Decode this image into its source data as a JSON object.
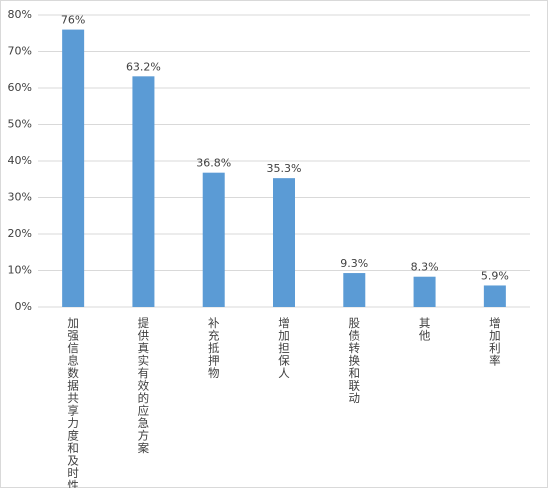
{
  "chart_data": {
    "type": "bar",
    "categories": [
      "加强信息数据共享力度和及时性",
      "提供真实有效的应急方案",
      "补充抵押物",
      "增加担保人",
      "股债转换和联动",
      "其他",
      "增加利率"
    ],
    "values": [
      76,
      63.2,
      36.8,
      35.3,
      9.3,
      8.3,
      5.9
    ],
    "value_labels": [
      "76%",
      "63.2%",
      "36.8%",
      "35.3%",
      "9.3%",
      "8.3%",
      "5.9%"
    ],
    "color": "#5b9bd5",
    "ylim": [
      0,
      80
    ],
    "yticks": [
      {
        "value": 0,
        "label": "0%"
      },
      {
        "value": 10,
        "label": "10%"
      },
      {
        "value": 20,
        "label": "20%"
      },
      {
        "value": 30,
        "label": "30%"
      },
      {
        "value": 40,
        "label": "40%"
      },
      {
        "value": 50,
        "label": "50%"
      },
      {
        "value": 60,
        "label": "60%"
      },
      {
        "value": 70,
        "label": "70%"
      },
      {
        "value": 80,
        "label": "80%"
      }
    ],
    "grid": true
  }
}
